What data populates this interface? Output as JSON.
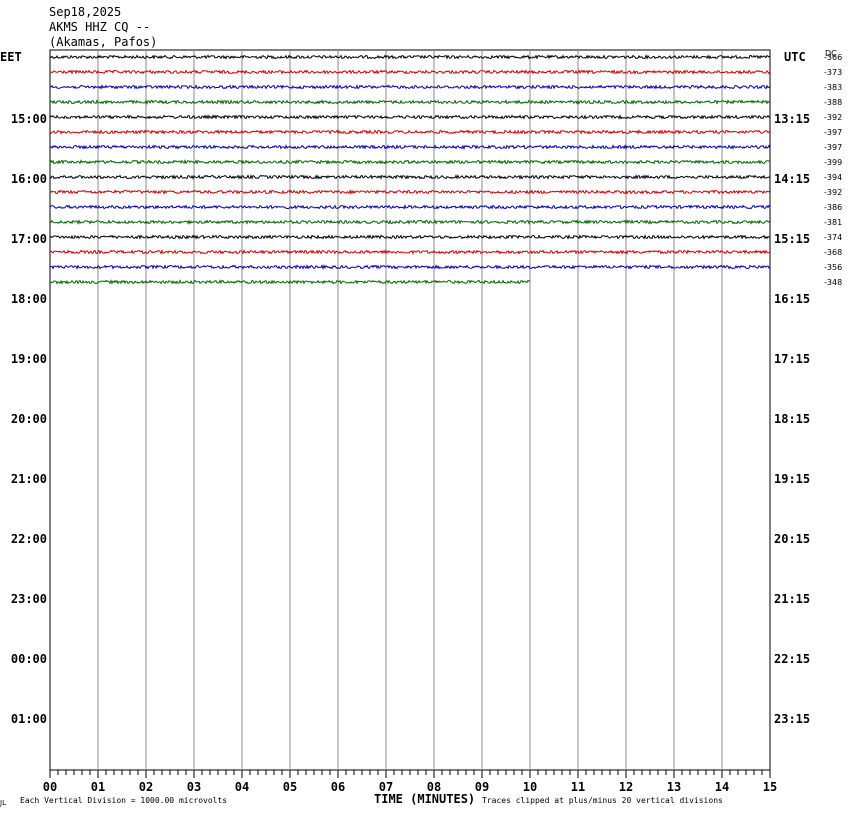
{
  "header": {
    "date": "Sep18,2025",
    "station": "AKMS HHZ CQ --",
    "location": "(Akamas, Pafos)"
  },
  "left_zone": "EET",
  "right_zone": "UTC",
  "dc_label": "DC",
  "footer": {
    "scale_note": "Each Vertical Division = 1000.00 microvolts",
    "xlabel": "TIME (MINUTES)",
    "clip_note": "Traces clipped at plus/minus 20 vertical divisions",
    "corner_mark": "JL"
  },
  "chart_data": {
    "type": "line",
    "title": "",
    "xlabel": "TIME (MINUTES)",
    "xlim": [
      0,
      15
    ],
    "x_ticks": [
      "00",
      "01",
      "02",
      "03",
      "04",
      "05",
      "06",
      "07",
      "08",
      "09",
      "10",
      "11",
      "12",
      "13",
      "14",
      "15"
    ],
    "hour_rows_left": [
      "15:00",
      "16:00",
      "17:00",
      "18:00",
      "19:00",
      "20:00",
      "21:00",
      "22:00",
      "23:00",
      "00:00",
      "01:00"
    ],
    "hour_rows_right": [
      "13:15",
      "14:15",
      "15:15",
      "16:15",
      "17:15",
      "18:15",
      "19:15",
      "20:15",
      "21:15",
      "22:15",
      "23:15"
    ],
    "trace_colors": [
      "#000000",
      "#cc0000",
      "#0000aa",
      "#006600"
    ],
    "traces": [
      {
        "dc": "-366",
        "end_minute": 15
      },
      {
        "dc": "-373",
        "end_minute": 15
      },
      {
        "dc": "-383",
        "end_minute": 15
      },
      {
        "dc": "-388",
        "end_minute": 15
      },
      {
        "dc": "-392",
        "end_minute": 15
      },
      {
        "dc": "-397",
        "end_minute": 15
      },
      {
        "dc": "-397",
        "end_minute": 15
      },
      {
        "dc": "-399",
        "end_minute": 15
      },
      {
        "dc": "-394",
        "end_minute": 15
      },
      {
        "dc": "-392",
        "end_minute": 15
      },
      {
        "dc": "-386",
        "end_minute": 15
      },
      {
        "dc": "-381",
        "end_minute": 15
      },
      {
        "dc": "-374",
        "end_minute": 15
      },
      {
        "dc": "-368",
        "end_minute": 15
      },
      {
        "dc": "-356",
        "end_minute": 15
      },
      {
        "dc": "-348",
        "end_minute": 10
      }
    ]
  }
}
